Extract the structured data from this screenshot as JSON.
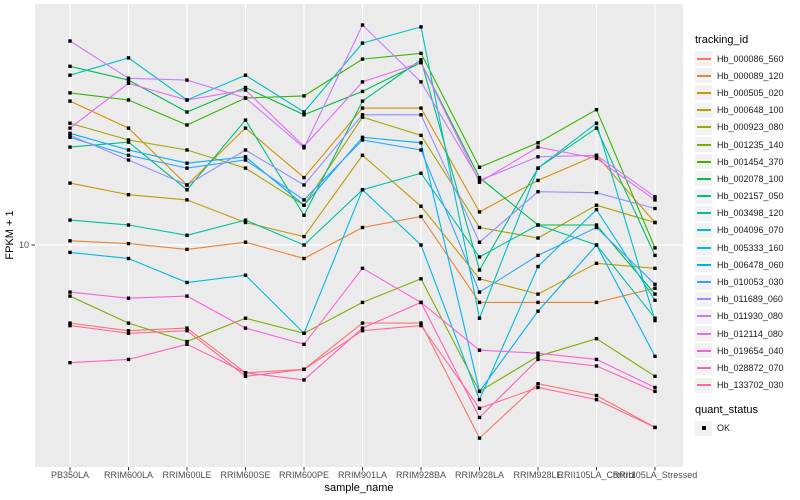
{
  "figure": {
    "background": "#FFFFFF",
    "panel_bg": "#EBEBEB",
    "grid_color": "#FFFFFF",
    "tick_color": "#333333",
    "tick_label_color": "#4D4D4D",
    "axis_title_color": "#000000",
    "legend_key_bg": "#F2F2F2",
    "point_color": "#000000"
  },
  "chart_data": {
    "type": "line",
    "title": "",
    "xlabel": "sample_name",
    "ylabel": "FPKM + 1",
    "y_scale": "log10",
    "y_tick_labels": [
      "10"
    ],
    "y_tick_values": [
      10
    ],
    "ylim": [
      2.1,
      54
    ],
    "grid": "on",
    "legend_position": "right",
    "color_legend_title": "tracking_id",
    "shape_legend_title": "quant_status",
    "shape_legend_items": [
      {
        "label": "OK",
        "shape": "filled-square",
        "color": "#000000"
      }
    ],
    "categories": [
      "PB350LA",
      "RRIM600LA",
      "RRIM600LE",
      "RRIM600SE",
      "RRIM600PE",
      "RRIM901LA",
      "RRIM928BA",
      "RRIM928LA",
      "RRIM928LE",
      "RRII105LA_Control",
      "RRII105LA_Stressed"
    ],
    "series": [
      {
        "name": "Hb_000086_560",
        "color": "#F8766D",
        "quant_status": "OK",
        "values": [
          5.8,
          5.5,
          5.6,
          4.1,
          4.2,
          5.8,
          5.8,
          2.6,
          3.8,
          3.5,
          2.8
        ]
      },
      {
        "name": "Hb_000089_120",
        "color": "#EA8331",
        "quant_status": "OK",
        "values": [
          10.3,
          10.1,
          9.7,
          10.2,
          9.1,
          11.3,
          12.2,
          6.7,
          6.7,
          6.7,
          7.4
        ]
      },
      {
        "name": "Hb_000505_020",
        "color": "#D89000",
        "quant_status": "OK",
        "values": [
          27.3,
          22.6,
          15.2,
          22.6,
          16.0,
          26.0,
          26.0,
          12.6,
          15.7,
          18.7,
          11.7
        ]
      },
      {
        "name": "Hb_000648_100",
        "color": "#C09B00",
        "quant_status": "OK",
        "values": [
          15.4,
          14.2,
          13.7,
          11.7,
          10.6,
          18.7,
          13.1,
          7.9,
          7.1,
          8.8,
          8.5
        ]
      },
      {
        "name": "Hb_000923_080",
        "color": "#A3A500",
        "quant_status": "OK",
        "values": [
          23.4,
          20.8,
          19.4,
          17.1,
          13.2,
          24.4,
          21.5,
          11.3,
          10.5,
          13.2,
          11.7
        ]
      },
      {
        "name": "Hb_001235_140",
        "color": "#7CAE00",
        "quant_status": "OK",
        "values": [
          7.0,
          5.8,
          5.1,
          6.0,
          5.4,
          6.7,
          7.9,
          3.6,
          4.6,
          5.2,
          4.0
        ]
      },
      {
        "name": "Hb_001454_370",
        "color": "#39B600",
        "quant_status": "OK",
        "values": [
          28.9,
          27.5,
          23.1,
          27.9,
          28.3,
          36.6,
          38.1,
          17.2,
          20.4,
          25.7,
          9.8
        ]
      },
      {
        "name": "Hb_002078_100",
        "color": "#00BB4E",
        "quant_status": "OK",
        "values": [
          34.8,
          31.6,
          25.3,
          30.0,
          24.8,
          29.2,
          35.7,
          16.0,
          11.5,
          11.5,
          7.1
        ]
      },
      {
        "name": "Hb_002157_050",
        "color": "#00BF7D",
        "quant_status": "OK",
        "values": [
          19.8,
          20.5,
          14.7,
          23.9,
          12.3,
          27.3,
          36.4,
          8.4,
          17.1,
          22.6,
          9.3
        ]
      },
      {
        "name": "Hb_003498_120",
        "color": "#00C1A3",
        "quant_status": "OK",
        "values": [
          11.9,
          11.5,
          10.7,
          11.9,
          10.0,
          14.7,
          16.5,
          9.2,
          11.5,
          10.0,
          6.0
        ]
      },
      {
        "name": "Hb_004096_070",
        "color": "#00BFC4",
        "quant_status": "OK",
        "values": [
          32.7,
          36.9,
          27.5,
          32.7,
          25.3,
          40.9,
          45.8,
          6.0,
          17.1,
          23.4,
          5.9
        ]
      },
      {
        "name": "Hb_005333_160",
        "color": "#00BAE0",
        "quant_status": "OK",
        "values": [
          9.5,
          9.1,
          7.7,
          8.1,
          5.4,
          14.7,
          10.0,
          3.4,
          8.6,
          12.8,
          6.8
        ]
      },
      {
        "name": "Hb_006478_060",
        "color": "#00B0F6",
        "quant_status": "OK",
        "values": [
          21.8,
          19.4,
          17.7,
          18.5,
          13.2,
          21.2,
          20.4,
          3.6,
          6.3,
          10.0,
          4.6
        ]
      },
      {
        "name": "Hb_010053_030",
        "color": "#35A2FF",
        "quant_status": "OK",
        "values": [
          21.2,
          18.7,
          17.1,
          18.1,
          13.7,
          20.8,
          19.4,
          7.2,
          9.3,
          11.3,
          7.6
        ]
      },
      {
        "name": "Hb_011689_060",
        "color": "#9590FF",
        "quant_status": "OK",
        "values": [
          21.5,
          18.1,
          15.2,
          19.4,
          15.2,
          24.8,
          24.8,
          10.2,
          14.5,
          14.4,
          12.9
        ]
      },
      {
        "name": "Hb_011930_080",
        "color": "#C77CFF",
        "quant_status": "OK",
        "values": [
          41.5,
          32.0,
          31.6,
          27.9,
          19.7,
          46.4,
          31.2,
          15.7,
          18.5,
          18.7,
          14.0
        ]
      },
      {
        "name": "Hb_012114_080",
        "color": "#E76BF3",
        "quant_status": "OK",
        "values": [
          22.6,
          30.9,
          27.5,
          29.5,
          19.9,
          31.2,
          35.7,
          15.5,
          19.8,
          18.3,
          13.7
        ]
      },
      {
        "name": "Hb_019654_040",
        "color": "#FA62DB",
        "quant_status": "OK",
        "values": [
          7.2,
          6.9,
          7.0,
          5.6,
          5.0,
          8.5,
          6.7,
          4.8,
          4.7,
          4.5,
          3.7
        ]
      },
      {
        "name": "Hb_028872_070",
        "color": "#FF62BC",
        "quant_status": "OK",
        "values": [
          4.4,
          4.5,
          5.0,
          4.1,
          3.9,
          5.6,
          6.7,
          3.0,
          4.5,
          4.3,
          3.6
        ]
      },
      {
        "name": "Hb_133702_030",
        "color": "#FF6A98",
        "quant_status": "OK",
        "values": [
          5.7,
          5.4,
          5.5,
          4.0,
          4.2,
          5.5,
          5.7,
          3.2,
          3.7,
          3.4,
          2.8
        ]
      }
    ]
  }
}
